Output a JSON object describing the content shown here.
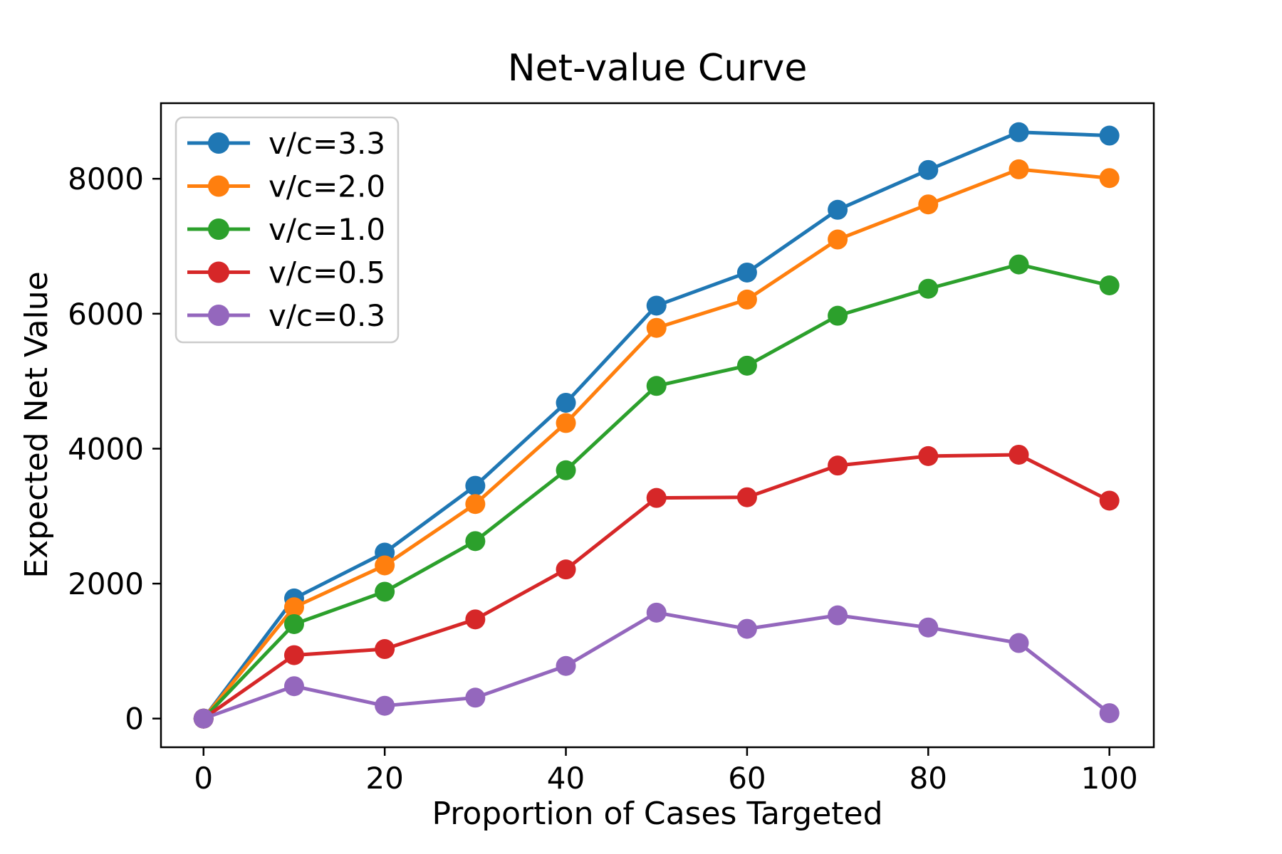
{
  "chart_data": {
    "type": "line",
    "title": "Net-value Curve",
    "xlabel": "Proportion of Cases Targeted",
    "ylabel": "Expected Net Value",
    "x": [
      0,
      10,
      20,
      30,
      40,
      50,
      60,
      70,
      80,
      90,
      100
    ],
    "series": [
      {
        "name": "v/c=3.3",
        "color": "#1f77b4",
        "values": [
          0,
          1780,
          2460,
          3450,
          4680,
          6120,
          6610,
          7540,
          8130,
          8690,
          8640
        ]
      },
      {
        "name": "v/c=2.0",
        "color": "#ff7f0e",
        "values": [
          0,
          1650,
          2270,
          3180,
          4380,
          5790,
          6210,
          7100,
          7620,
          8140,
          8010
        ]
      },
      {
        "name": "v/c=1.0",
        "color": "#2ca02c",
        "values": [
          0,
          1400,
          1880,
          2630,
          3680,
          4930,
          5230,
          5970,
          6370,
          6730,
          6420
        ]
      },
      {
        "name": "v/c=0.5",
        "color": "#d62728",
        "values": [
          0,
          940,
          1030,
          1470,
          2210,
          3270,
          3280,
          3750,
          3890,
          3910,
          3230
        ]
      },
      {
        "name": "v/c=0.3",
        "color": "#9467bd",
        "values": [
          0,
          480,
          190,
          310,
          780,
          1570,
          1330,
          1530,
          1350,
          1120,
          80
        ]
      }
    ],
    "xticks": [
      0,
      20,
      40,
      60,
      80,
      100
    ],
    "yticks": [
      0,
      2000,
      4000,
      6000,
      8000
    ],
    "xlim": [
      -4.7,
      104.9
    ],
    "ylim": [
      -425,
      9120
    ],
    "grid": false,
    "legend_position": "upper left",
    "marker": "o",
    "line_color_axes": "#000000",
    "legend_border_color": "#cccccc"
  }
}
